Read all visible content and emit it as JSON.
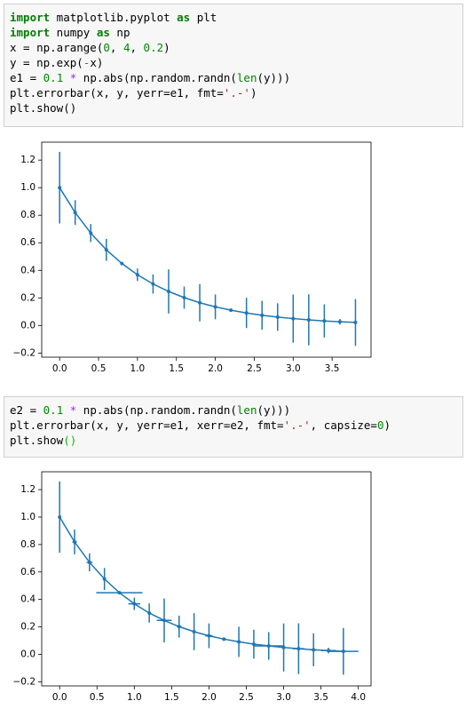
{
  "cells": [
    {
      "lines": [
        [
          {
            "text": "import",
            "color": "#008000",
            "bold": true
          },
          {
            "text": " matplotlib.pyplot "
          },
          {
            "text": "as",
            "color": "#008000",
            "bold": true
          },
          {
            "text": " plt"
          }
        ],
        [
          {
            "text": "import",
            "color": "#008000",
            "bold": true
          },
          {
            "text": " numpy "
          },
          {
            "text": "as",
            "color": "#008000",
            "bold": true
          },
          {
            "text": " np"
          }
        ],
        [
          {
            "text": "x = np.arange("
          },
          {
            "text": "0",
            "color": "#008800"
          },
          {
            "text": ", "
          },
          {
            "text": "4",
            "color": "#008800"
          },
          {
            "text": ", "
          },
          {
            "text": "0.2",
            "color": "#008800"
          },
          {
            "text": ")"
          }
        ],
        [
          {
            "text": "y = np.exp("
          },
          {
            "text": "-",
            "color": "#aa22ff"
          },
          {
            "text": "x)"
          }
        ],
        [
          {
            "text": "e1 = "
          },
          {
            "text": "0.1",
            "color": "#008800"
          },
          {
            "text": " "
          },
          {
            "text": "*",
            "color": "#aa22ff"
          },
          {
            "text": " np.abs(np.random.randn("
          },
          {
            "text": "len",
            "color": "#008000"
          },
          {
            "text": "(y)))"
          }
        ],
        [
          {
            "text": "plt.errorbar(x, y, yerr=e1, fmt="
          },
          {
            "text": "'.-'",
            "color": "#ba2121"
          },
          {
            "text": ")"
          }
        ],
        [
          {
            "text": "plt.show()"
          }
        ]
      ]
    },
    {
      "lines": [
        [
          {
            "text": "e2 = "
          },
          {
            "text": "0.1",
            "color": "#008800"
          },
          {
            "text": " "
          },
          {
            "text": "*",
            "color": "#aa22ff"
          },
          {
            "text": " np.abs(np.random.randn("
          },
          {
            "text": "len",
            "color": "#008000"
          },
          {
            "text": "(y)))"
          }
        ],
        [
          {
            "text": "plt.errorbar(x, y, yerr=e1, xerr=e2, fmt="
          },
          {
            "text": "'.-'",
            "color": "#ba2121"
          },
          {
            "text": ", capsize="
          },
          {
            "text": "0",
            "color": "#008800"
          },
          {
            "text": ")"
          }
        ],
        [
          {
            "text": "plt.show"
          },
          {
            "text": "()",
            "color": "#00c000"
          }
        ]
      ]
    }
  ],
  "chart_data": [
    {
      "type": "errorbar",
      "color": "#1f77b4",
      "x": [
        0,
        0.2,
        0.4,
        0.6,
        0.8,
        1.0,
        1.2,
        1.4,
        1.6,
        1.8,
        2.0,
        2.2,
        2.4,
        2.6,
        2.8,
        3.0,
        3.2,
        3.4,
        3.6,
        3.8
      ],
      "values": [
        1,
        0.819,
        0.67,
        0.549,
        0.449,
        0.368,
        0.301,
        0.247,
        0.202,
        0.165,
        0.135,
        0.111,
        0.091,
        0.074,
        0.061,
        0.05,
        0.041,
        0.033,
        0.027,
        0.022
      ],
      "yerr": [
        0.26,
        0.09,
        0.065,
        0.08,
        0.01,
        0.045,
        0.07,
        0.16,
        0.08,
        0.135,
        0.09,
        0.01,
        0.11,
        0.105,
        0.1,
        0.175,
        0.185,
        0.12,
        0.02,
        0.17
      ],
      "xlim": [
        -0.23,
        4.0
      ],
      "ylim": [
        -0.23,
        1.33
      ],
      "xticks": [
        {
          "value": 0,
          "label": "0.0"
        },
        {
          "value": 0.5,
          "label": "0.5"
        },
        {
          "value": 1,
          "label": "1.0"
        },
        {
          "value": 1.5,
          "label": "1.5"
        },
        {
          "value": 2,
          "label": "2.0"
        },
        {
          "value": 2.5,
          "label": "2.5"
        },
        {
          "value": 3,
          "label": "3.0"
        },
        {
          "value": 3.5,
          "label": "3.5"
        }
      ],
      "yticks": [
        {
          "value": -0.2,
          "label": "−0.2"
        },
        {
          "value": 0,
          "label": "0.0"
        },
        {
          "value": 0.2,
          "label": "0.2"
        },
        {
          "value": 0.4,
          "label": "0.4"
        },
        {
          "value": 0.6,
          "label": "0.6"
        },
        {
          "value": 0.8,
          "label": "0.8"
        },
        {
          "value": 1,
          "label": "1.0"
        },
        {
          "value": 1.2,
          "label": "1.2"
        }
      ]
    },
    {
      "type": "errorbar",
      "color": "#1f77b4",
      "x": [
        0,
        0.2,
        0.4,
        0.6,
        0.8,
        1.0,
        1.2,
        1.4,
        1.6,
        1.8,
        2.0,
        2.2,
        2.4,
        2.6,
        2.8,
        3.0,
        3.2,
        3.4,
        3.6,
        3.8
      ],
      "values": [
        1,
        0.819,
        0.67,
        0.549,
        0.449,
        0.368,
        0.301,
        0.247,
        0.202,
        0.165,
        0.135,
        0.111,
        0.091,
        0.074,
        0.061,
        0.05,
        0.041,
        0.033,
        0.027,
        0.022
      ],
      "yerr": [
        0.26,
        0.09,
        0.065,
        0.08,
        0.01,
        0.045,
        0.07,
        0.16,
        0.08,
        0.135,
        0.09,
        0.01,
        0.11,
        0.105,
        0.1,
        0.175,
        0.185,
        0.12,
        0.02,
        0.17
      ],
      "xerr": [
        0.01,
        0.03,
        0.04,
        0.02,
        0.31,
        0.08,
        0.02,
        0.1,
        0.03,
        0.02,
        0.05,
        0.02,
        0.03,
        0.01,
        0.2,
        0.02,
        0.08,
        0.05,
        0.1,
        0.2
      ],
      "xlim": [
        -0.24,
        4.17
      ],
      "ylim": [
        -0.23,
        1.33
      ],
      "xticks": [
        {
          "value": 0,
          "label": "0.0"
        },
        {
          "value": 0.5,
          "label": "0.5"
        },
        {
          "value": 1,
          "label": "1.0"
        },
        {
          "value": 1.5,
          "label": "1.5"
        },
        {
          "value": 2,
          "label": "2.0"
        },
        {
          "value": 2.5,
          "label": "2.5"
        },
        {
          "value": 3,
          "label": "3.0"
        },
        {
          "value": 3.5,
          "label": "3.5"
        },
        {
          "value": 4,
          "label": "4.0"
        }
      ],
      "yticks": [
        {
          "value": -0.2,
          "label": "−0.2"
        },
        {
          "value": 0,
          "label": "0.0"
        },
        {
          "value": 0.2,
          "label": "0.2"
        },
        {
          "value": 0.4,
          "label": "0.4"
        },
        {
          "value": 0.6,
          "label": "0.6"
        },
        {
          "value": 0.8,
          "label": "0.8"
        },
        {
          "value": 1,
          "label": "1.0"
        },
        {
          "value": 1.2,
          "label": "1.2"
        }
      ]
    }
  ]
}
